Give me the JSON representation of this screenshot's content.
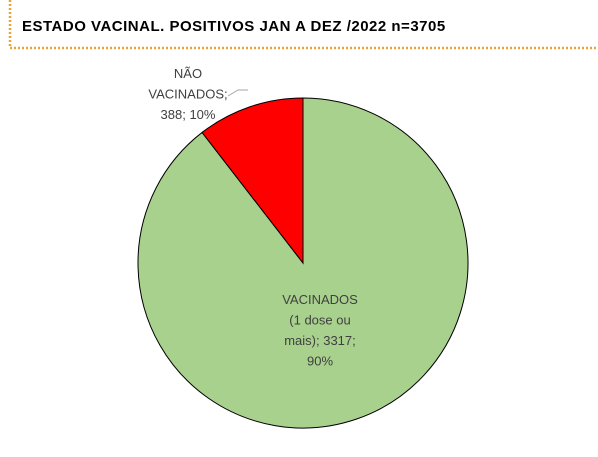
{
  "chart_data": {
    "type": "pie",
    "title": "ESTADO VACINAL. POSITIVOS JAN A DEZ /2022 n=3705",
    "values": [
      3317,
      388
    ],
    "colors": [
      "#a9d18e",
      "#ff0000"
    ],
    "labels": [
      [
        "VACINADOS",
        "(1 dose ou",
        "mais); 3317;",
        "90%"
      ],
      [
        "NÃO",
        "VACINADOS;",
        "388; 10%"
      ]
    ]
  }
}
